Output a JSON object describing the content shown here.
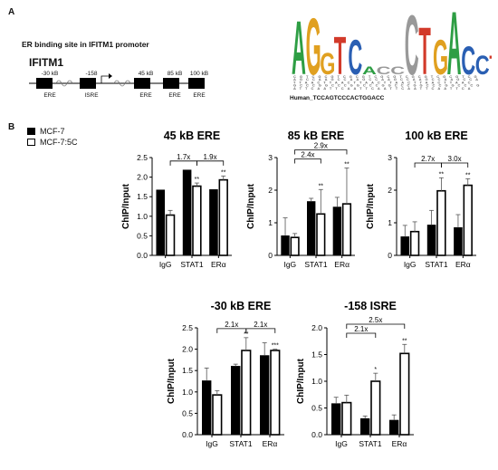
{
  "panel_a": {
    "letter": "A",
    "subtitle": "ER binding site in IFITM1 promoter",
    "gene": "IFITM1",
    "sites": [
      {
        "top": "-30 kB",
        "bottom": "ERE"
      },
      {
        "top": "-158",
        "bottom": "ISRE"
      },
      {
        "top": "45 kB",
        "bottom": "ERE"
      },
      {
        "top": "85 kB",
        "bottom": "ERE"
      },
      {
        "top": "100 kB",
        "bottom": "ERE"
      }
    ],
    "motif_sequence": "Human_TCCAGTCCCACTGGACC",
    "logo_letters": "AGGTCAnnnTGACCT"
  },
  "panel_b": {
    "letter": "B",
    "legend": [
      {
        "label": "MCF-7",
        "color": "#000000"
      },
      {
        "label": "MCF-7:5C",
        "color": "#ffffff"
      }
    ]
  },
  "chart_data": [
    {
      "type": "bar",
      "title": "45 kB ERE",
      "ylabel": "ChIP/Input",
      "categories": [
        "IgG",
        "STAT1",
        "ERα"
      ],
      "ylim": [
        0,
        2.5
      ],
      "yticks": [
        0,
        0.5,
        1.0,
        1.5,
        2.0,
        2.5
      ],
      "series": [
        {
          "name": "MCF-7",
          "values": [
            1.67,
            2.18,
            1.68
          ],
          "errors": [
            0,
            0,
            0
          ]
        },
        {
          "name": "MCF-7:5C",
          "values": [
            1.03,
            1.77,
            1.93
          ],
          "errors": [
            0.12,
            0.08,
            0.1
          ]
        }
      ],
      "stars": [
        "",
        "**",
        "**"
      ],
      "brackets": [
        {
          "from": 0,
          "to": 1,
          "label": "1.7x"
        },
        {
          "from": 1,
          "to": 2,
          "label": "1.9x"
        }
      ]
    },
    {
      "type": "bar",
      "title": "85 kB ERE",
      "ylabel": "ChIP/Input",
      "categories": [
        "IgG",
        "STAT1",
        "ERα"
      ],
      "ylim": [
        0,
        3
      ],
      "yticks": [
        0,
        1,
        2,
        3
      ],
      "series": [
        {
          "name": "MCF-7",
          "values": [
            0.6,
            1.65,
            1.48
          ],
          "errors": [
            0.55,
            0.1,
            0.3
          ]
        },
        {
          "name": "MCF-7:5C",
          "values": [
            0.55,
            1.27,
            1.58
          ],
          "errors": [
            0.12,
            0.75,
            1.1
          ]
        }
      ],
      "stars": [
        "",
        "**",
        "**"
      ],
      "brackets": [
        {
          "from": 0,
          "to": 1,
          "label": "2.4x"
        },
        {
          "from": 0,
          "to": 2,
          "label": "2.9x"
        }
      ]
    },
    {
      "type": "bar",
      "title": "100 kB ERE",
      "ylabel": "ChIP/Input",
      "categories": [
        "IgG",
        "STAT1",
        "ERα"
      ],
      "ylim": [
        0,
        3
      ],
      "yticks": [
        0,
        1,
        2,
        3
      ],
      "series": [
        {
          "name": "MCF-7",
          "values": [
            0.57,
            0.93,
            0.85
          ],
          "errors": [
            0.35,
            0.45,
            0.4
          ]
        },
        {
          "name": "MCF-7:5C",
          "values": [
            0.73,
            1.98,
            2.15
          ],
          "errors": [
            0.3,
            0.4,
            0.2
          ]
        }
      ],
      "stars": [
        "",
        "**",
        "**"
      ],
      "brackets": [
        {
          "from": 0,
          "to": 1,
          "label": "2.7x"
        },
        {
          "from": 1,
          "to": 2,
          "label": "3.0x"
        }
      ]
    },
    {
      "type": "bar",
      "title": "-30 kB ERE",
      "ylabel": "ChIP/Input",
      "categories": [
        "IgG",
        "STAT1",
        "ERα"
      ],
      "ylim": [
        0,
        2.5
      ],
      "yticks": [
        0,
        0.5,
        1.0,
        1.5,
        2.0,
        2.5
      ],
      "series": [
        {
          "name": "MCF-7",
          "values": [
            1.26,
            1.6,
            1.85
          ],
          "errors": [
            0.3,
            0.05,
            0.3
          ]
        },
        {
          "name": "MCF-7:5C",
          "values": [
            0.93,
            1.97,
            1.97
          ],
          "errors": [
            0.1,
            0.3,
            0.03
          ]
        }
      ],
      "stars": [
        "",
        "**",
        "***"
      ],
      "brackets": [
        {
          "from": 0,
          "to": 1,
          "label": "2.1x"
        },
        {
          "from": 1,
          "to": 2,
          "label": "2.1x"
        }
      ]
    },
    {
      "type": "bar",
      "title": "-158 ISRE",
      "ylabel": "ChIP/Input",
      "categories": [
        "IgG",
        "STAT1",
        "ERα"
      ],
      "ylim": [
        0,
        2.0
      ],
      "yticks": [
        0,
        0.5,
        1.0,
        1.5,
        2.0
      ],
      "series": [
        {
          "name": "MCF-7",
          "values": [
            0.58,
            0.3,
            0.27
          ],
          "errors": [
            0.12,
            0.05,
            0.1
          ]
        },
        {
          "name": "MCF-7:5C",
          "values": [
            0.6,
            1.0,
            1.52
          ],
          "errors": [
            0.14,
            0.15,
            0.17
          ]
        }
      ],
      "stars": [
        "",
        "*",
        "**"
      ],
      "brackets": [
        {
          "from": 0,
          "to": 1,
          "label": "2.1x"
        },
        {
          "from": 0,
          "to": 2,
          "label": "2.5x"
        }
      ]
    }
  ]
}
